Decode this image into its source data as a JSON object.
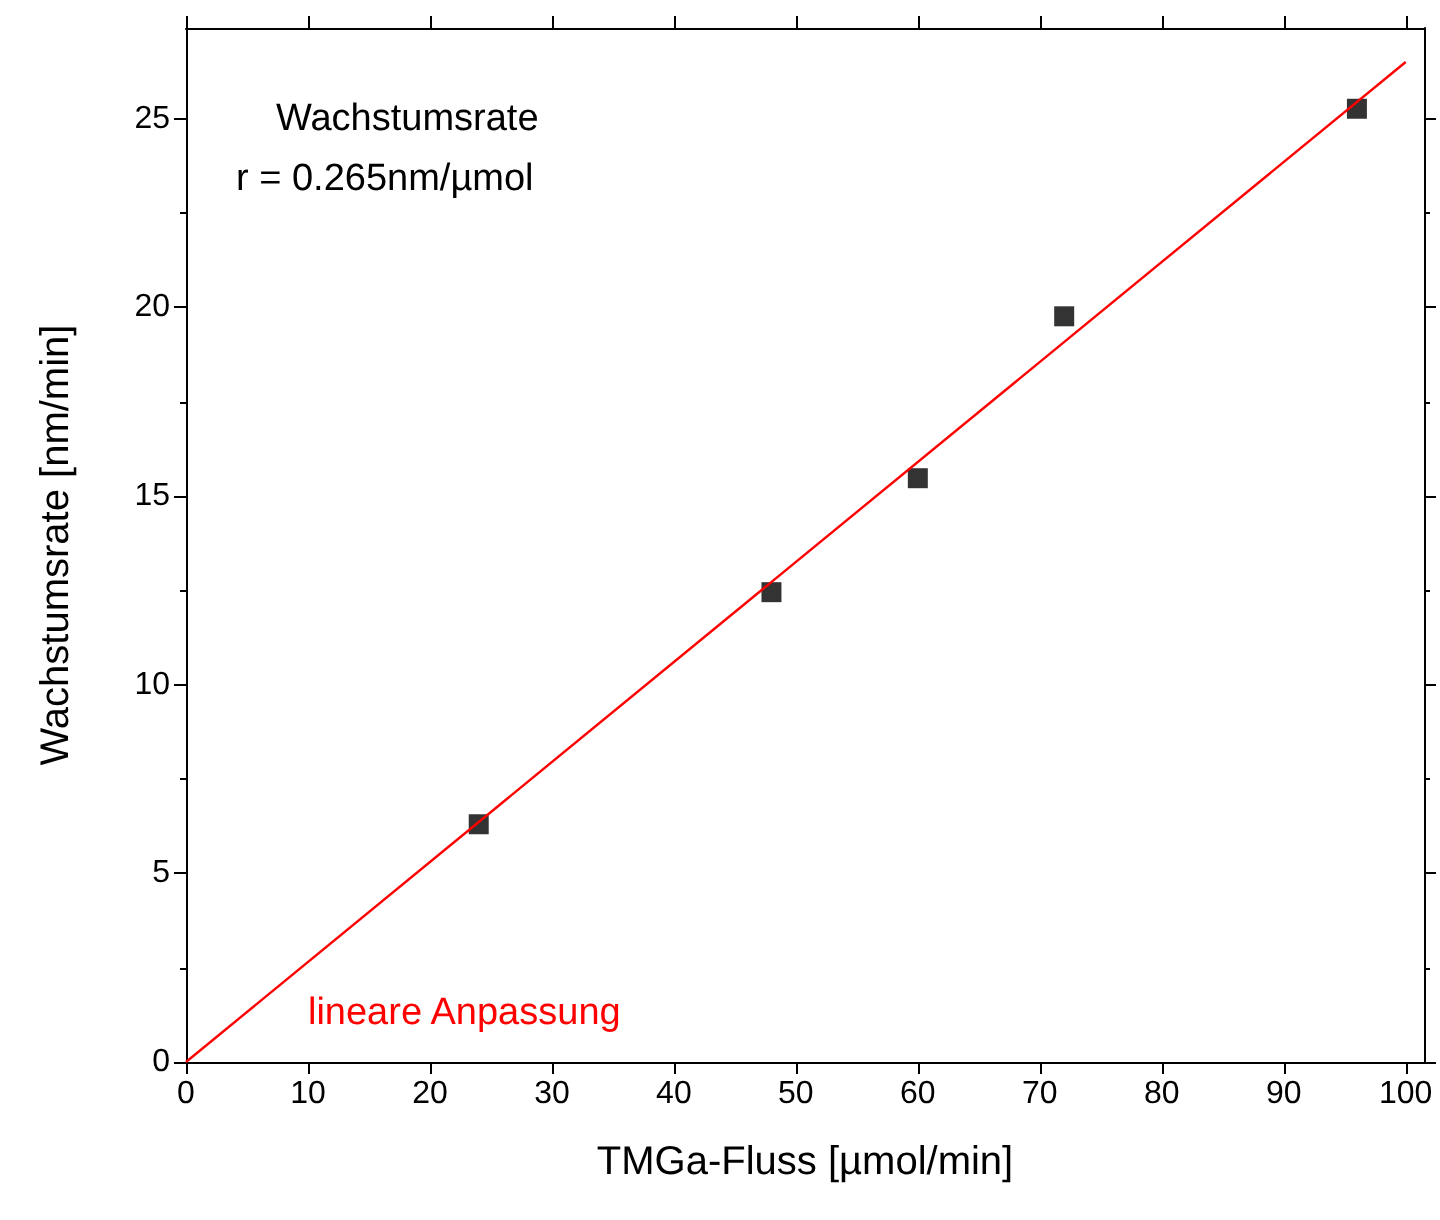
{
  "chart_data": {
    "type": "scatter",
    "xlabel": "TMGa-Fluss [µmol/min]",
    "ylabel": "Wachstumsrate [nm/min]",
    "annotations": [
      "Wachstumsrate",
      "r = 0.265nm/µmol"
    ],
    "series": [
      {
        "color": "#000000",
        "marker": "square",
        "x": [
          24,
          48,
          60,
          72,
          96
        ],
        "values": [
          6.3,
          12.45,
          15.47,
          19.76,
          25.26
        ]
      },
      {
        "type": "line",
        "name": "lineare Anpassung",
        "color": "#ff0000",
        "marker": "none",
        "line_style": "solid",
        "x": [
          0,
          100
        ],
        "values": [
          0,
          26.5
        ]
      }
    ],
    "xlim": [
      0,
      101.5
    ],
    "xticks": [
      0,
      10,
      20,
      30,
      40,
      50,
      60,
      70,
      80,
      90,
      100
    ],
    "ylim": [
      0,
      27.4
    ],
    "yticks": [
      0,
      5,
      10,
      15,
      20,
      25
    ],
    "grid": false,
    "legend": false
  }
}
